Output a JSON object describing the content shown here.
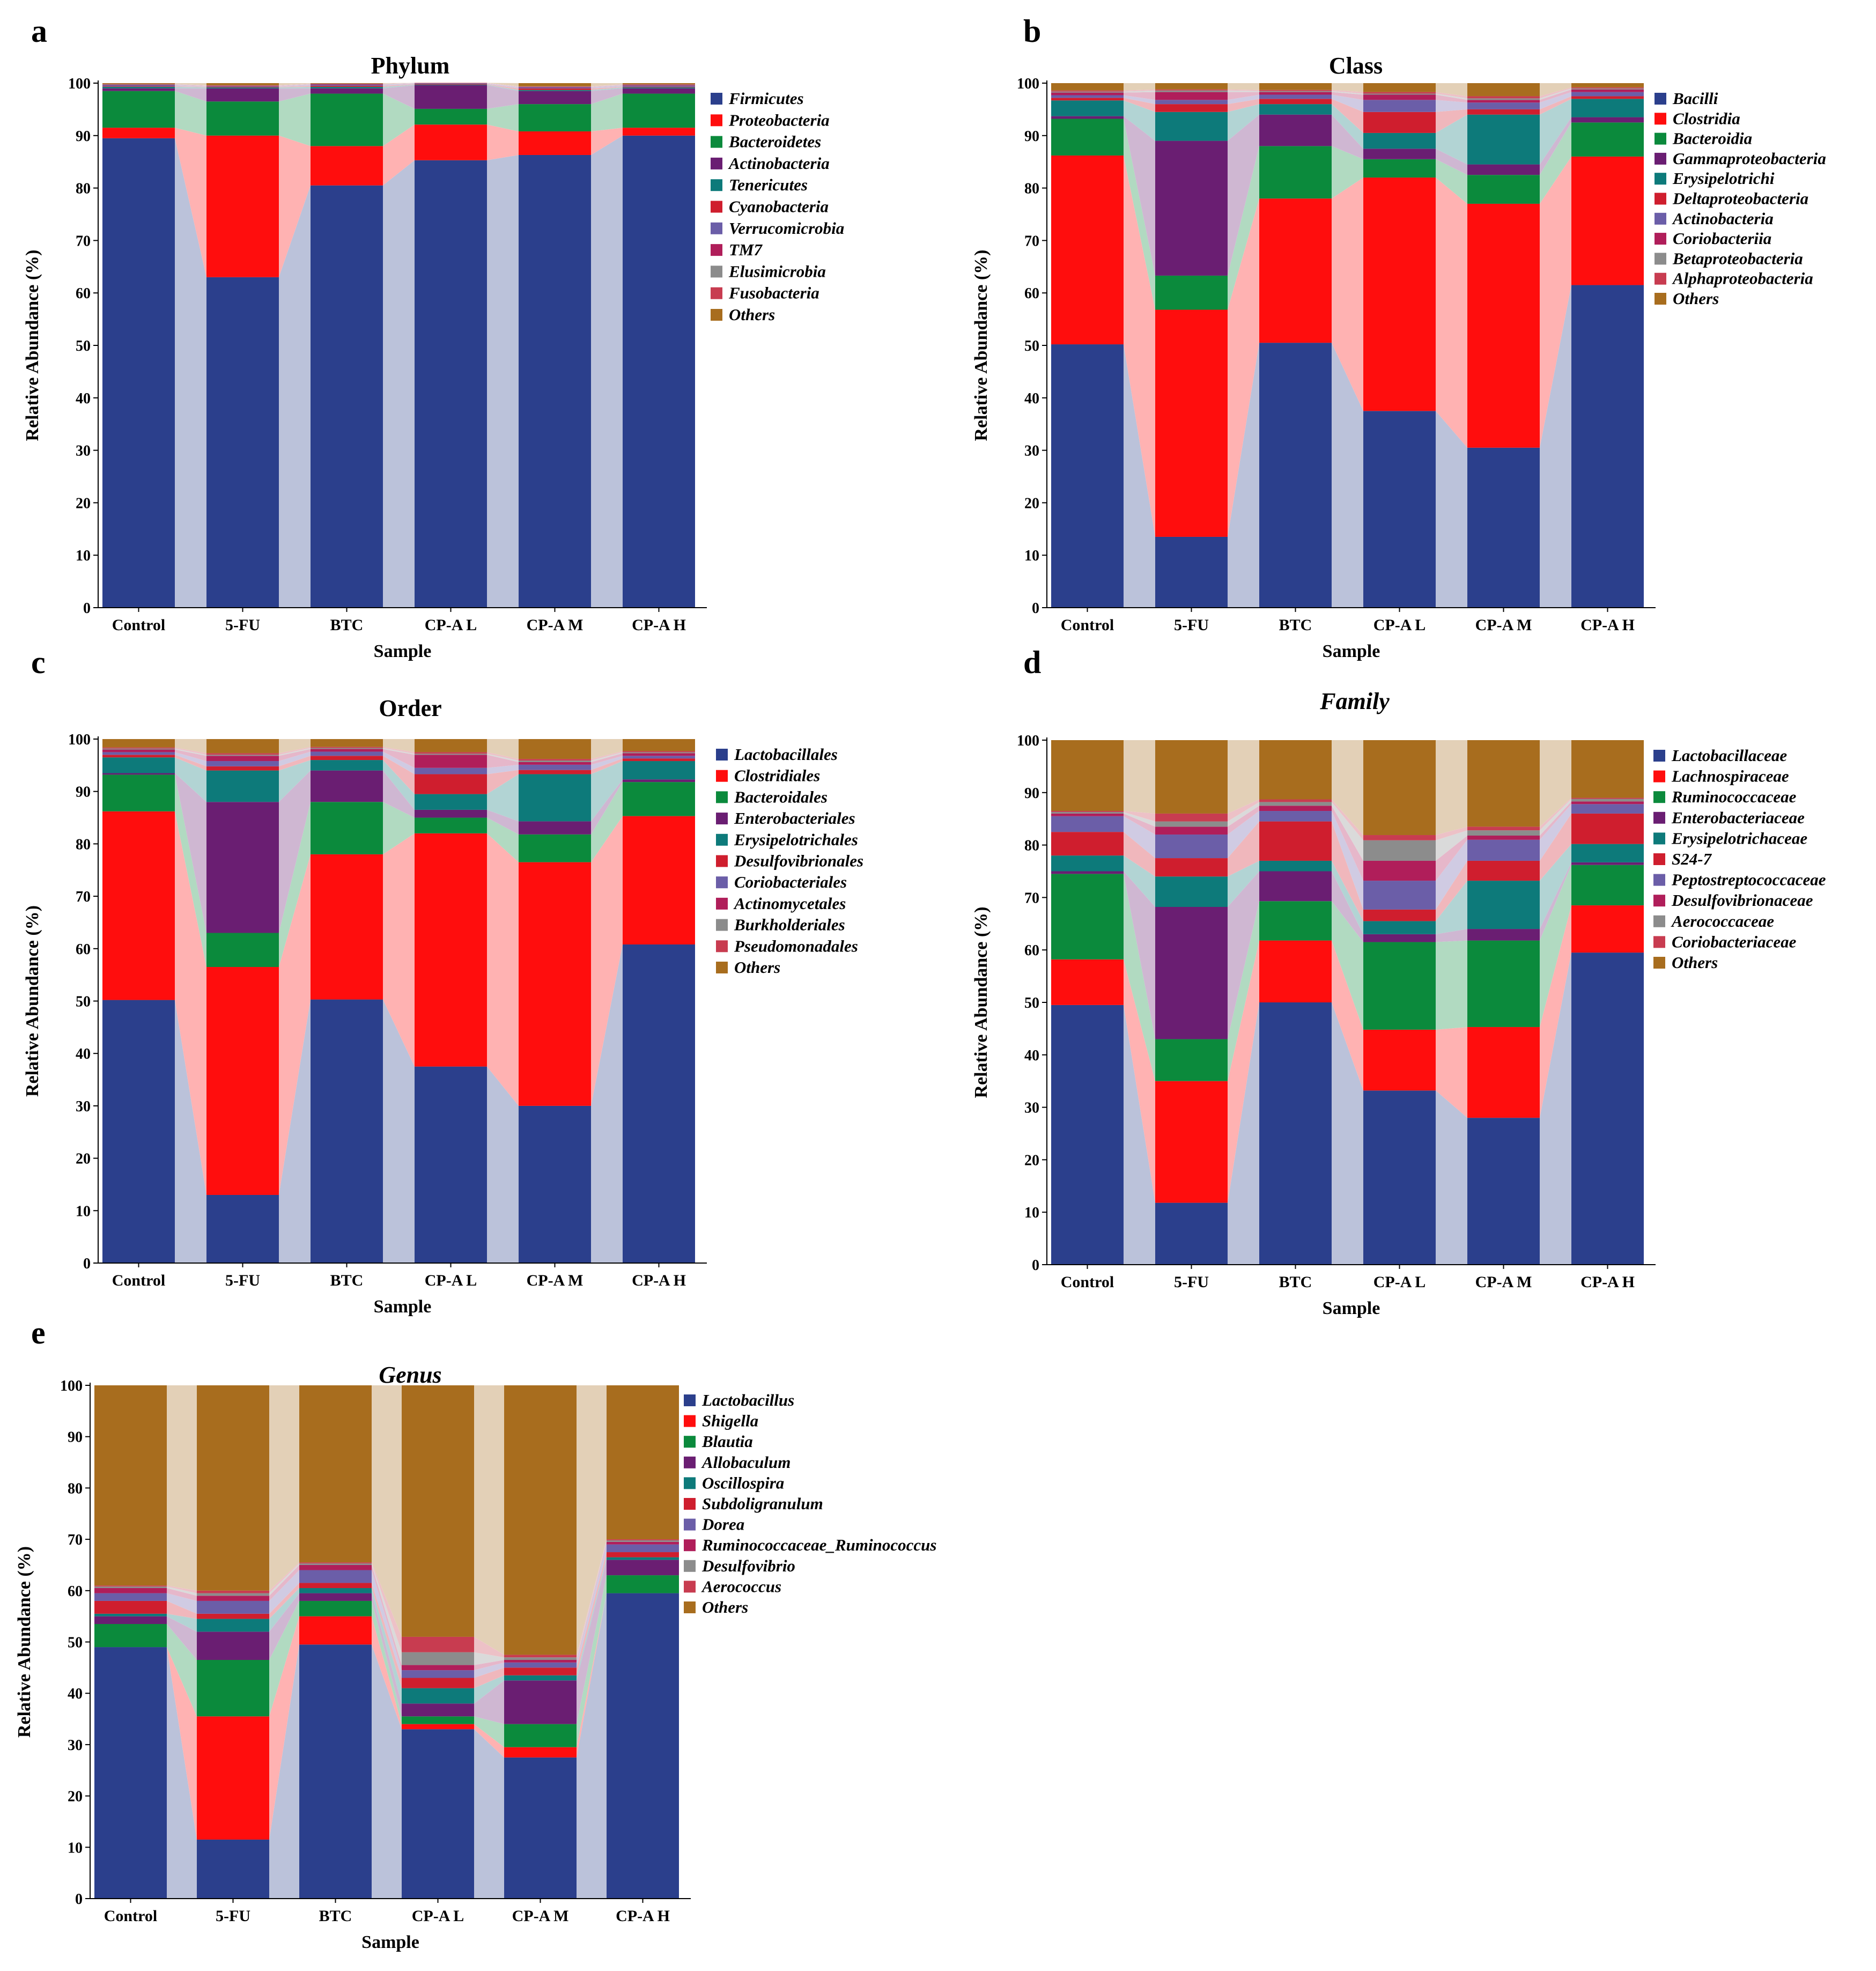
{
  "figure_letters": [
    "a",
    "b",
    "c",
    "d",
    "e"
  ],
  "chart_data": [
    {
      "type": "bar",
      "stacked": true,
      "panel": "a",
      "title": "Phylum",
      "title_italic": false,
      "xlabel": "Sample",
      "ylabel": "Relative Abundance (%)",
      "ylim": [
        0,
        100
      ],
      "yticks": [
        0,
        10,
        20,
        30,
        40,
        50,
        60,
        70,
        80,
        90,
        100
      ],
      "categories": [
        "Control",
        "5-FU",
        "BTC",
        "CP-A L",
        "CP-A M",
        "CP-A H"
      ],
      "series": [
        {
          "name": "Firmicutes",
          "color": "#2b3f8c",
          "values": [
            89.5,
            63,
            80.5,
            85.3,
            86.3,
            90
          ]
        },
        {
          "name": "Proteobacteria",
          "color": "#ff0d0d",
          "values": [
            2,
            27,
            7.5,
            6.8,
            4.5,
            1.5
          ]
        },
        {
          "name": "Bacteroidetes",
          "color": "#0b8a3c",
          "values": [
            7,
            6.5,
            10,
            3,
            5.2,
            6.5
          ]
        },
        {
          "name": "Actinobacteria",
          "color": "#6a1e72",
          "values": [
            0.5,
            2.5,
            1,
            4.5,
            2.5,
            1
          ]
        },
        {
          "name": "Tenericutes",
          "color": "#0d7a7a",
          "values": [
            0.3,
            0.2,
            0.3,
            0.1,
            0.2,
            0.2
          ]
        },
        {
          "name": "Cyanobacteria",
          "color": "#cf1e2e",
          "values": [
            0.1,
            0.1,
            0.2,
            0.1,
            0.3,
            0.1
          ]
        },
        {
          "name": "Verrucomicrobia",
          "color": "#6b5ea8",
          "values": [
            0.2,
            0.1,
            0.2,
            0.1,
            0.2,
            0.2
          ]
        },
        {
          "name": "TM7",
          "color": "#b01e5a",
          "values": [
            0.1,
            0.1,
            0.1,
            0.05,
            0.1,
            0.1
          ]
        },
        {
          "name": "Elusimicrobia",
          "color": "#8c8c8c",
          "values": [
            0.1,
            0.05,
            0.05,
            0.05,
            0.05,
            0.1
          ]
        },
        {
          "name": "Fusobacteria",
          "color": "#c83c50",
          "values": [
            0.05,
            0.05,
            0.05,
            0.05,
            0.05,
            0.1
          ]
        },
        {
          "name": "Others",
          "color": "#a86d1e",
          "values": [
            0.15,
            0.4,
            0.1,
            0.0,
            0.6,
            0.2
          ]
        }
      ]
    },
    {
      "type": "bar",
      "stacked": true,
      "panel": "b",
      "title": "Class",
      "title_italic": false,
      "xlabel": "Sample",
      "ylabel": "Relative Abundance (%)",
      "ylim": [
        0,
        100
      ],
      "yticks": [
        0,
        10,
        20,
        30,
        40,
        50,
        60,
        70,
        80,
        90,
        100
      ],
      "categories": [
        "Control",
        "5-FU",
        "BTC",
        "CP-A L",
        "CP-A M",
        "CP-A H"
      ],
      "series": [
        {
          "name": "Bacilli",
          "color": "#2b3f8c",
          "values": [
            50.2,
            13.5,
            50.5,
            37.5,
            30.5,
            61.5
          ]
        },
        {
          "name": "Clostridia",
          "color": "#ff0d0d",
          "values": [
            36,
            43.3,
            27.5,
            44.5,
            46.5,
            24.5
          ]
        },
        {
          "name": "Bacteroidia",
          "color": "#0b8a3c",
          "values": [
            7,
            6.5,
            10,
            3.5,
            5.5,
            6.5
          ]
        },
        {
          "name": "Gammaproteobacteria",
          "color": "#6a1e72",
          "values": [
            0.5,
            25.7,
            6,
            2,
            2,
            1
          ]
        },
        {
          "name": "Erysipelotrichi",
          "color": "#0d7a7a",
          "values": [
            3,
            5.5,
            2,
            3,
            9.5,
            3.5
          ]
        },
        {
          "name": "Deltaproteobacteria",
          "color": "#cf1e2e",
          "values": [
            0.5,
            1.5,
            1,
            4,
            1,
            0.5
          ]
        },
        {
          "name": "Actinobacteria",
          "color": "#6b5ea8",
          "values": [
            0.5,
            0.8,
            0.8,
            2.3,
            1.3,
            0.8
          ]
        },
        {
          "name": "Coriobacteriia",
          "color": "#b01e5a",
          "values": [
            0.5,
            1.5,
            0.5,
            1,
            0.5,
            0.5
          ]
        },
        {
          "name": "Betaproteobacteria",
          "color": "#8c8c8c",
          "values": [
            0.2,
            0.3,
            0.2,
            0.2,
            0.3,
            0.2
          ]
        },
        {
          "name": "Alphaproteobacteria",
          "color": "#c83c50",
          "values": [
            0.2,
            0.2,
            0.2,
            0.3,
            0.4,
            0.2
          ]
        },
        {
          "name": "Others",
          "color": "#a86d1e",
          "values": [
            1.4,
            1.2,
            1.3,
            1.7,
            2.5,
            0.8
          ]
        }
      ]
    },
    {
      "type": "bar",
      "stacked": true,
      "panel": "c",
      "title": "Order",
      "title_italic": false,
      "xlabel": "Sample",
      "ylabel": "Relative Abundance (%)",
      "ylim": [
        0,
        100
      ],
      "yticks": [
        0,
        10,
        20,
        30,
        40,
        50,
        60,
        70,
        80,
        90,
        100
      ],
      "categories": [
        "Control",
        "5-FU",
        "BTC",
        "CP-A L",
        "CP-A M",
        "CP-A H"
      ],
      "series": [
        {
          "name": "Lactobacillales",
          "color": "#2b3f8c",
          "values": [
            50.2,
            13,
            50.3,
            37.5,
            30,
            60.8
          ]
        },
        {
          "name": "Clostridiales",
          "color": "#ff0d0d",
          "values": [
            36,
            43.5,
            27.7,
            44.5,
            46.5,
            24.5
          ]
        },
        {
          "name": "Bacteroidales",
          "color": "#0b8a3c",
          "values": [
            7,
            6.5,
            10,
            3,
            5.3,
            6.5
          ]
        },
        {
          "name": "Enterobacteriales",
          "color": "#6a1e72",
          "values": [
            0.3,
            25,
            6,
            1.5,
            2.5,
            0.5
          ]
        },
        {
          "name": "Erysipelotrichales",
          "color": "#0d7a7a",
          "values": [
            3,
            6,
            2,
            3,
            9,
            3.5
          ]
        },
        {
          "name": "Desulfovibrionales",
          "color": "#cf1e2e",
          "values": [
            0.5,
            0.8,
            0.8,
            3.8,
            0.8,
            0.5
          ]
        },
        {
          "name": "Coriobacteriales",
          "color": "#6b5ea8",
          "values": [
            0.5,
            1,
            0.8,
            1.2,
            1,
            0.5
          ]
        },
        {
          "name": "Actinomycetales",
          "color": "#b01e5a",
          "values": [
            0.5,
            1,
            0.5,
            2.5,
            0.5,
            0.5
          ]
        },
        {
          "name": "Burkholderiales",
          "color": "#8c8c8c",
          "values": [
            0.2,
            0.2,
            0.2,
            0.2,
            0.3,
            0.2
          ]
        },
        {
          "name": "Pseudomonadales",
          "color": "#c83c50",
          "values": [
            0.2,
            0.3,
            0.2,
            0.3,
            0.3,
            0.2
          ]
        },
        {
          "name": "Others",
          "color": "#a86d1e",
          "values": [
            1.6,
            2.7,
            1.5,
            2.5,
            3.8,
            2.3
          ]
        }
      ]
    },
    {
      "type": "bar",
      "stacked": true,
      "panel": "d",
      "title": "Family",
      "title_italic": true,
      "xlabel": "Sample",
      "ylabel": "Relative Abundance (%)",
      "ylim": [
        0,
        100
      ],
      "yticks": [
        0,
        10,
        20,
        30,
        40,
        50,
        60,
        70,
        80,
        90,
        100
      ],
      "categories": [
        "Control",
        "5-FU",
        "BTC",
        "CP-A L",
        "CP-A M",
        "CP-A H"
      ],
      "series": [
        {
          "name": "Lactobacillaceae",
          "color": "#2b3f8c",
          "values": [
            49.5,
            11.8,
            50,
            33.2,
            28,
            59.5
          ]
        },
        {
          "name": "Lachnospiraceae",
          "color": "#ff0d0d",
          "values": [
            8.7,
            23.2,
            11.8,
            11.6,
            17.3,
            9
          ]
        },
        {
          "name": "Ruminococcaceae",
          "color": "#0b8a3c",
          "values": [
            16.3,
            8,
            7.5,
            16.7,
            16.5,
            7.7
          ]
        },
        {
          "name": "Enterobacteriaceae",
          "color": "#6a1e72",
          "values": [
            0.5,
            25.2,
            5.7,
            1.5,
            2.2,
            0.5
          ]
        },
        {
          "name": "Erysipelotrichaceae",
          "color": "#0d7a7a",
          "values": [
            3,
            5.8,
            2,
            2.5,
            9.2,
            3.5
          ]
        },
        {
          "name": "S24-7",
          "color": "#cf1e2e",
          "values": [
            4.5,
            3.5,
            7.5,
            2.2,
            3.8,
            5.8
          ]
        },
        {
          "name": "Peptostreptococcaceae",
          "color": "#6b5ea8",
          "values": [
            3,
            4.5,
            2,
            5.5,
            4,
            1.8
          ]
        },
        {
          "name": "Desulfovibrionaceae",
          "color": "#b01e5a",
          "values": [
            0.5,
            1.5,
            1,
            3.8,
            0.8,
            0.5
          ]
        },
        {
          "name": "Aerococcaceae",
          "color": "#8c8c8c",
          "values": [
            0.3,
            1,
            0.7,
            3.9,
            1,
            0.5
          ]
        },
        {
          "name": "Coriobacteriaceae",
          "color": "#c83c50",
          "values": [
            0.2,
            1.5,
            0.5,
            1,
            0.7,
            0.2
          ]
        },
        {
          "name": "Others",
          "color": "#a86d1e",
          "values": [
            13.5,
            14,
            11.3,
            18.1,
            16.5,
            11
          ]
        }
      ]
    },
    {
      "type": "bar",
      "stacked": true,
      "panel": "e",
      "title": "Genus",
      "title_italic": true,
      "xlabel": "Sample",
      "ylabel": "Relative Abundance (%)",
      "ylim": [
        0,
        100
      ],
      "yticks": [
        0,
        10,
        20,
        30,
        40,
        50,
        60,
        70,
        80,
        90,
        100
      ],
      "categories": [
        "Control",
        "5-FU",
        "BTC",
        "CP-A L",
        "CP-A M",
        "CP-A H"
      ],
      "series": [
        {
          "name": "Lactobacillus",
          "color": "#2b3f8c",
          "values": [
            49,
            11.5,
            49.5,
            33,
            27.5,
            59.5
          ]
        },
        {
          "name": "Shigella",
          "color": "#ff0d0d",
          "values": [
            0,
            24,
            5.5,
            1,
            2,
            0
          ]
        },
        {
          "name": "Blautia",
          "color": "#0b8a3c",
          "values": [
            4.5,
            11,
            3,
            1.5,
            4.5,
            3.5
          ]
        },
        {
          "name": "Allobaculum",
          "color": "#6a1e72",
          "values": [
            1.5,
            5.5,
            1.5,
            2.5,
            8.5,
            3
          ]
        },
        {
          "name": "Oscillospira",
          "color": "#0d7a7a",
          "values": [
            0.5,
            2.5,
            1,
            3,
            1,
            0.5
          ]
        },
        {
          "name": "Subdoligranulum",
          "color": "#cf1e2e",
          "values": [
            2.5,
            1,
            1,
            2,
            1.5,
            1
          ]
        },
        {
          "name": "Dorea",
          "color": "#6b5ea8",
          "values": [
            1.5,
            2.5,
            2.5,
            1.5,
            1,
            1.5
          ]
        },
        {
          "name": "Ruminococcaceae_Ruminococcus",
          "color": "#b01e5a",
          "values": [
            1,
            1,
            1,
            1,
            0.5,
            0.5
          ]
        },
        {
          "name": "Desulfovibrio",
          "color": "#8c8c8c",
          "values": [
            0.3,
            0.5,
            0.3,
            2.5,
            0.5,
            0.3
          ]
        },
        {
          "name": "Aerococcus",
          "color": "#c83c50",
          "values": [
            0.2,
            0.5,
            0.2,
            3,
            0.5,
            0.2
          ]
        },
        {
          "name": "Others",
          "color": "#a86d1e",
          "values": [
            39,
            40,
            34.5,
            49,
            52.5,
            30
          ]
        }
      ]
    }
  ]
}
